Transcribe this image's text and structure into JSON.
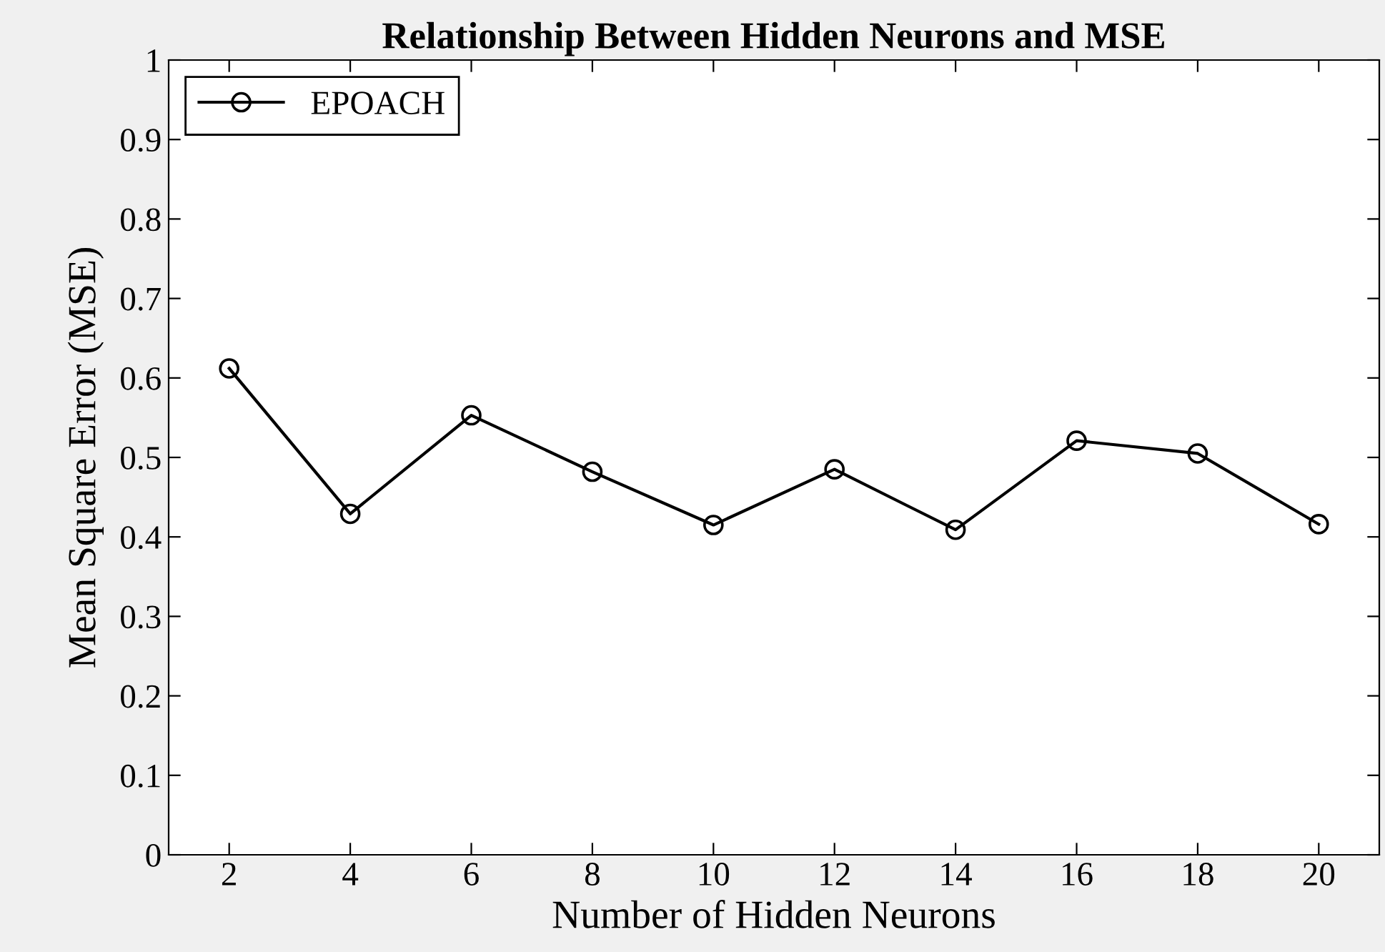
{
  "chart_data": {
    "type": "line",
    "title": "Relationship Between Hidden Neurons and MSE",
    "xlabel": "Number of Hidden Neurons",
    "ylabel": "Mean Square Error (MSE)",
    "x": [
      2,
      4,
      6,
      8,
      10,
      12,
      14,
      16,
      18,
      20
    ],
    "series": [
      {
        "name": "EPOACH",
        "color": "#000000",
        "values": [
          0.612,
          0.429,
          0.553,
          0.482,
          0.415,
          0.485,
          0.409,
          0.521,
          0.505,
          0.416
        ]
      }
    ],
    "xlim": [
      1,
      21
    ],
    "xticks": [
      2,
      4,
      6,
      8,
      10,
      12,
      14,
      16,
      18,
      20
    ],
    "ylim": [
      0,
      1
    ],
    "yticks": [
      0,
      0.1,
      0.2,
      0.3,
      0.4,
      0.5,
      0.6,
      0.7,
      0.8,
      0.9,
      1
    ],
    "grid": false,
    "legend": "top left",
    "marker": "circle",
    "line_style": "solid"
  }
}
